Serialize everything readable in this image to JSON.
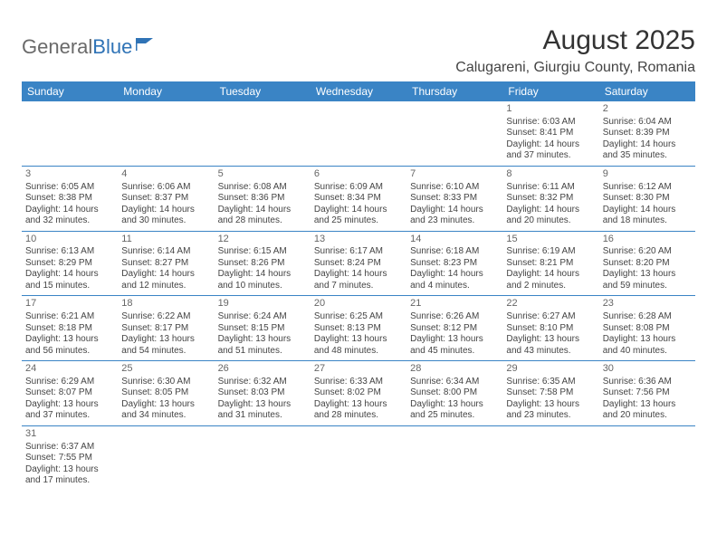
{
  "logo": {
    "general": "General",
    "blue": "Blue"
  },
  "title": "August 2025",
  "location": "Calugareni, Giurgiu County, Romania",
  "colors": {
    "header_bg": "#3a84c5",
    "header_text": "#ffffff",
    "rule": "#3a84c5",
    "text": "#444444",
    "title": "#333333",
    "logo_gray": "#6a6a6a",
    "logo_blue": "#2f73b6",
    "background": "#ffffff"
  },
  "dayNames": [
    "Sunday",
    "Monday",
    "Tuesday",
    "Wednesday",
    "Thursday",
    "Friday",
    "Saturday"
  ],
  "weeks": [
    [
      null,
      null,
      null,
      null,
      null,
      {
        "n": "1",
        "sr": "6:03 AM",
        "ss": "8:41 PM",
        "dl": "14 hours and 37 minutes."
      },
      {
        "n": "2",
        "sr": "6:04 AM",
        "ss": "8:39 PM",
        "dl": "14 hours and 35 minutes."
      }
    ],
    [
      {
        "n": "3",
        "sr": "6:05 AM",
        "ss": "8:38 PM",
        "dl": "14 hours and 32 minutes."
      },
      {
        "n": "4",
        "sr": "6:06 AM",
        "ss": "8:37 PM",
        "dl": "14 hours and 30 minutes."
      },
      {
        "n": "5",
        "sr": "6:08 AM",
        "ss": "8:36 PM",
        "dl": "14 hours and 28 minutes."
      },
      {
        "n": "6",
        "sr": "6:09 AM",
        "ss": "8:34 PM",
        "dl": "14 hours and 25 minutes."
      },
      {
        "n": "7",
        "sr": "6:10 AM",
        "ss": "8:33 PM",
        "dl": "14 hours and 23 minutes."
      },
      {
        "n": "8",
        "sr": "6:11 AM",
        "ss": "8:32 PM",
        "dl": "14 hours and 20 minutes."
      },
      {
        "n": "9",
        "sr": "6:12 AM",
        "ss": "8:30 PM",
        "dl": "14 hours and 18 minutes."
      }
    ],
    [
      {
        "n": "10",
        "sr": "6:13 AM",
        "ss": "8:29 PM",
        "dl": "14 hours and 15 minutes."
      },
      {
        "n": "11",
        "sr": "6:14 AM",
        "ss": "8:27 PM",
        "dl": "14 hours and 12 minutes."
      },
      {
        "n": "12",
        "sr": "6:15 AM",
        "ss": "8:26 PM",
        "dl": "14 hours and 10 minutes."
      },
      {
        "n": "13",
        "sr": "6:17 AM",
        "ss": "8:24 PM",
        "dl": "14 hours and 7 minutes."
      },
      {
        "n": "14",
        "sr": "6:18 AM",
        "ss": "8:23 PM",
        "dl": "14 hours and 4 minutes."
      },
      {
        "n": "15",
        "sr": "6:19 AM",
        "ss": "8:21 PM",
        "dl": "14 hours and 2 minutes."
      },
      {
        "n": "16",
        "sr": "6:20 AM",
        "ss": "8:20 PM",
        "dl": "13 hours and 59 minutes."
      }
    ],
    [
      {
        "n": "17",
        "sr": "6:21 AM",
        "ss": "8:18 PM",
        "dl": "13 hours and 56 minutes."
      },
      {
        "n": "18",
        "sr": "6:22 AM",
        "ss": "8:17 PM",
        "dl": "13 hours and 54 minutes."
      },
      {
        "n": "19",
        "sr": "6:24 AM",
        "ss": "8:15 PM",
        "dl": "13 hours and 51 minutes."
      },
      {
        "n": "20",
        "sr": "6:25 AM",
        "ss": "8:13 PM",
        "dl": "13 hours and 48 minutes."
      },
      {
        "n": "21",
        "sr": "6:26 AM",
        "ss": "8:12 PM",
        "dl": "13 hours and 45 minutes."
      },
      {
        "n": "22",
        "sr": "6:27 AM",
        "ss": "8:10 PM",
        "dl": "13 hours and 43 minutes."
      },
      {
        "n": "23",
        "sr": "6:28 AM",
        "ss": "8:08 PM",
        "dl": "13 hours and 40 minutes."
      }
    ],
    [
      {
        "n": "24",
        "sr": "6:29 AM",
        "ss": "8:07 PM",
        "dl": "13 hours and 37 minutes."
      },
      {
        "n": "25",
        "sr": "6:30 AM",
        "ss": "8:05 PM",
        "dl": "13 hours and 34 minutes."
      },
      {
        "n": "26",
        "sr": "6:32 AM",
        "ss": "8:03 PM",
        "dl": "13 hours and 31 minutes."
      },
      {
        "n": "27",
        "sr": "6:33 AM",
        "ss": "8:02 PM",
        "dl": "13 hours and 28 minutes."
      },
      {
        "n": "28",
        "sr": "6:34 AM",
        "ss": "8:00 PM",
        "dl": "13 hours and 25 minutes."
      },
      {
        "n": "29",
        "sr": "6:35 AM",
        "ss": "7:58 PM",
        "dl": "13 hours and 23 minutes."
      },
      {
        "n": "30",
        "sr": "6:36 AM",
        "ss": "7:56 PM",
        "dl": "13 hours and 20 minutes."
      }
    ],
    [
      {
        "n": "31",
        "sr": "6:37 AM",
        "ss": "7:55 PM",
        "dl": "13 hours and 17 minutes."
      },
      null,
      null,
      null,
      null,
      null,
      null
    ]
  ],
  "labels": {
    "sunrise": "Sunrise:",
    "sunset": "Sunset:",
    "daylight": "Daylight:"
  }
}
